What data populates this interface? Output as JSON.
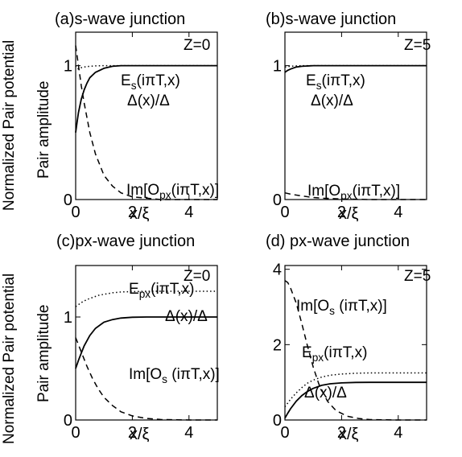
{
  "figure": {
    "ylabel_outer": "Normalized Pair potential",
    "ylabel_inner": "Pair amplitude"
  },
  "chart_data": [
    {
      "id": "a",
      "type": "line",
      "title": "(a)s-wave junction",
      "annotation": "Z=0",
      "xlabel": "x/ξ",
      "xlim": [
        0,
        5
      ],
      "ylim": [
        0,
        1.25
      ],
      "xticks": [
        0,
        2,
        4
      ],
      "yticks": [
        0,
        1
      ],
      "series": [
        {
          "name": "E_s(iπT,x)",
          "style": "dotted",
          "x": [
            0,
            0.05,
            0.1,
            0.15,
            0.2,
            0.3,
            0.4,
            0.5,
            0.7,
            1.0,
            1.5,
            2.0,
            3.0,
            4.0,
            5.0
          ],
          "values": [
            1.0,
            0.98,
            0.975,
            0.98,
            0.985,
            0.99,
            0.993,
            0.995,
            0.998,
            1.0,
            1.0,
            1.0,
            1.0,
            1.0,
            1.0
          ]
        },
        {
          "name": "Δ(x)/Δ",
          "style": "solid",
          "x": [
            0,
            0.05,
            0.1,
            0.2,
            0.3,
            0.4,
            0.5,
            0.7,
            1.0,
            1.3,
            1.6,
            2.0,
            3.0,
            4.0,
            5.0
          ],
          "values": [
            0.5,
            0.58,
            0.65,
            0.75,
            0.82,
            0.87,
            0.91,
            0.95,
            0.98,
            0.995,
            1.0,
            1.0,
            1.0,
            1.0,
            1.0
          ]
        },
        {
          "name": "Im[O_px(iπT,x)]",
          "style": "dashed",
          "x": [
            0,
            0.1,
            0.2,
            0.3,
            0.5,
            0.7,
            1.0,
            1.3,
            1.6,
            2.0,
            2.5,
            3.0,
            4.0,
            5.0
          ],
          "values": [
            1.15,
            1.0,
            0.85,
            0.72,
            0.5,
            0.34,
            0.18,
            0.1,
            0.05,
            0.02,
            0.01,
            0.0,
            0.0,
            0.0
          ]
        }
      ],
      "labels": [
        {
          "text": "E",
          "sub": "s",
          "tail": "(iπT,x)"
        },
        {
          "text": "Δ(x)/Δ",
          "sub": "",
          "tail": ""
        },
        {
          "text": "Im[O",
          "sub": "px",
          "tail": "(iπT,x)]"
        }
      ]
    },
    {
      "id": "b",
      "type": "line",
      "title": "(b)s-wave junction",
      "annotation": "Z=5",
      "xlabel": "x/ξ",
      "xlim": [
        0,
        5
      ],
      "ylim": [
        0,
        1.25
      ],
      "xticks": [
        0,
        2,
        4
      ],
      "yticks": [
        0,
        1
      ],
      "series": [
        {
          "name": "E_s(iπT,x)",
          "style": "dotted",
          "x": [
            0,
            0.1,
            0.2,
            0.4,
            0.6,
            1.0,
            2.0,
            3.0,
            4.0,
            5.0
          ],
          "values": [
            0.99,
            0.993,
            0.996,
            0.998,
            1.0,
            1.0,
            1.0,
            1.0,
            1.0,
            1.0
          ]
        },
        {
          "name": "Δ(x)/Δ",
          "style": "solid",
          "x": [
            0,
            0.1,
            0.2,
            0.4,
            0.6,
            1.0,
            2.0,
            3.0,
            4.0,
            5.0
          ],
          "values": [
            0.95,
            0.965,
            0.975,
            0.99,
            0.995,
            1.0,
            1.0,
            1.0,
            1.0,
            1.0
          ]
        },
        {
          "name": "Im[O_px(iπT,x)]",
          "style": "dashed",
          "x": [
            0,
            0.2,
            0.5,
            1.0,
            1.5,
            2.0,
            3.0,
            4.0,
            5.0
          ],
          "values": [
            0.05,
            0.04,
            0.03,
            0.015,
            0.008,
            0.004,
            0.0,
            0.0,
            0.0
          ]
        }
      ],
      "labels": [
        {
          "text": "E",
          "sub": "s",
          "tail": "(iπT,x)"
        },
        {
          "text": "Δ(x)/Δ",
          "sub": "",
          "tail": ""
        },
        {
          "text": "Im[O",
          "sub": "px",
          "tail": "(iπT,x)]"
        }
      ]
    },
    {
      "id": "c",
      "type": "line",
      "title": "(c)px-wave junction",
      "annotation": "Z=0",
      "xlabel": "x/ξ",
      "xlim": [
        0,
        5
      ],
      "ylim": [
        0,
        1.5
      ],
      "xticks": [
        0,
        2,
        4
      ],
      "yticks": [
        0,
        1
      ],
      "series": [
        {
          "name": "E_px(iπT,x)",
          "style": "dotted",
          "x": [
            0,
            0.2,
            0.4,
            0.6,
            0.8,
            1.0,
            1.3,
            1.6,
            2.0,
            2.5,
            3.0,
            4.0,
            5.0
          ],
          "values": [
            1.1,
            1.14,
            1.17,
            1.19,
            1.21,
            1.22,
            1.235,
            1.243,
            1.247,
            1.25,
            1.25,
            1.25,
            1.25
          ]
        },
        {
          "name": "Δ(x)/Δ",
          "style": "solid",
          "x": [
            0,
            0.1,
            0.2,
            0.3,
            0.5,
            0.7,
            1.0,
            1.3,
            1.6,
            2.0,
            2.5,
            3.0,
            4.0,
            5.0
          ],
          "values": [
            0.5,
            0.58,
            0.65,
            0.72,
            0.82,
            0.89,
            0.95,
            0.975,
            0.99,
            0.998,
            1.0,
            1.0,
            1.0,
            1.0
          ]
        },
        {
          "name": "Im[O_s(iπT,x)]",
          "style": "dashed",
          "x": [
            0,
            0.1,
            0.2,
            0.4,
            0.6,
            0.8,
            1.0,
            1.3,
            1.6,
            2.0,
            2.5,
            3.0,
            4.0,
            5.0
          ],
          "values": [
            0.8,
            0.73,
            0.66,
            0.52,
            0.4,
            0.3,
            0.22,
            0.14,
            0.08,
            0.04,
            0.015,
            0.005,
            0.0,
            0.0
          ]
        }
      ],
      "labels": [
        {
          "text": "E",
          "sub": "px",
          "tail": "(iπT,x)"
        },
        {
          "text": "Δ(x)/Δ",
          "sub": "",
          "tail": ""
        },
        {
          "text": "Im[O",
          "sub": "s",
          "tail": " (iπT,x)]"
        }
      ]
    },
    {
      "id": "d",
      "type": "line",
      "title": "(d) px-wave junction",
      "annotation": "Z=5",
      "xlabel": "x/ξ",
      "xlim": [
        0,
        5
      ],
      "ylim": [
        0,
        4.1
      ],
      "xticks": [
        0,
        2,
        4
      ],
      "yticks": [
        0,
        2,
        4
      ],
      "series": [
        {
          "name": "E_px(iπT,x)",
          "style": "dotted",
          "x": [
            0,
            0.2,
            0.4,
            0.6,
            0.8,
            1.0,
            1.3,
            1.6,
            2.0,
            2.5,
            3.0,
            4.0,
            5.0
          ],
          "values": [
            0.35,
            0.55,
            0.72,
            0.86,
            0.98,
            1.06,
            1.14,
            1.19,
            1.22,
            1.24,
            1.25,
            1.25,
            1.25
          ]
        },
        {
          "name": "Δ(x)/Δ",
          "style": "solid",
          "x": [
            0,
            0.1,
            0.2,
            0.4,
            0.6,
            0.8,
            1.0,
            1.3,
            1.6,
            2.0,
            2.5,
            3.0,
            4.0,
            5.0
          ],
          "values": [
            0.05,
            0.18,
            0.3,
            0.5,
            0.65,
            0.76,
            0.84,
            0.92,
            0.96,
            0.985,
            0.997,
            1.0,
            1.0,
            1.0
          ]
        },
        {
          "name": "Im[O_s(iπT,x)]",
          "style": "dashed",
          "x": [
            0,
            0.1,
            0.2,
            0.4,
            0.6,
            0.8,
            1.0,
            1.2,
            1.5,
            1.8,
            2.2,
            2.6,
            3.0,
            4.0,
            5.0
          ],
          "values": [
            3.7,
            3.65,
            3.5,
            3.1,
            2.55,
            1.95,
            1.4,
            0.95,
            0.5,
            0.25,
            0.1,
            0.04,
            0.01,
            0.0,
            0.0
          ]
        }
      ],
      "labels": [
        {
          "text": "Im[O",
          "sub": "s",
          "tail": " (iπT,x)]"
        },
        {
          "text": "E",
          "sub": "px",
          "tail": "(iπT,x)"
        },
        {
          "text": "Δ(x)/Δ",
          "sub": "",
          "tail": ""
        }
      ]
    }
  ]
}
